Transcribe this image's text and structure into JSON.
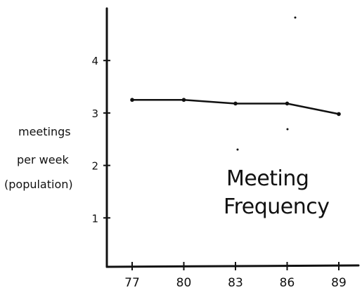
{
  "chart_data": {
    "type": "line",
    "title_lines": [
      "Meeting",
      "Frequency"
    ],
    "ylabel_lines": [
      "meetings",
      "per week",
      "(population)"
    ],
    "xlabel": "",
    "x": [
      "77",
      "80",
      "83",
      "86",
      "89"
    ],
    "series": [
      {
        "values": [
          3.25,
          3.25,
          3.18,
          3.18,
          2.98
        ]
      }
    ],
    "yticks": [
      "1",
      "2",
      "3",
      "4"
    ],
    "ylim": [
      0,
      5
    ],
    "grid": false,
    "legend": "none",
    "line_color": "#111111"
  }
}
